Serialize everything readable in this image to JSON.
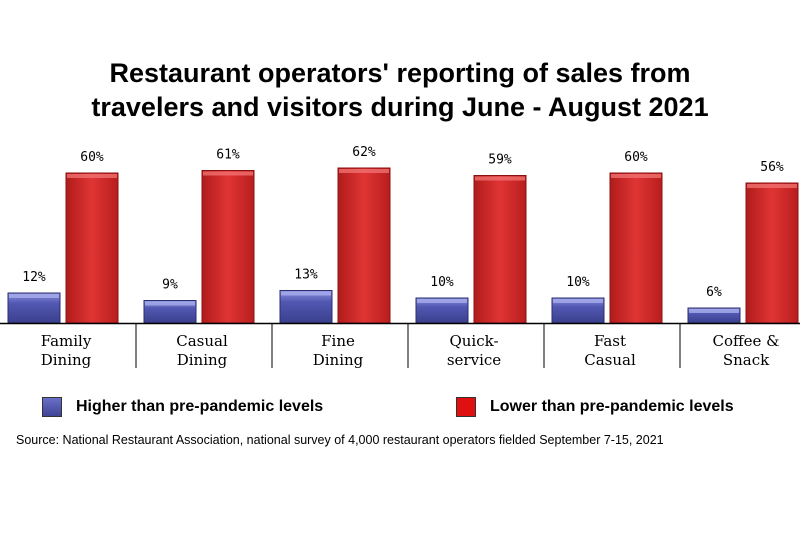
{
  "chart_data": {
    "type": "bar",
    "title_lines": [
      "Restaurant operators' reporting of sales from",
      "travelers and visitors during June - August 2021"
    ],
    "categories": [
      [
        "Family",
        "Dining"
      ],
      [
        "Casual",
        "Dining"
      ],
      [
        "Fine",
        "Dining"
      ],
      [
        "Quick-",
        "service"
      ],
      [
        "Fast",
        "Casual"
      ],
      [
        "Coffee &",
        "Snack"
      ]
    ],
    "series": [
      {
        "name": "Higher than pre-pandemic levels",
        "values": [
          12,
          9,
          13,
          10,
          10,
          6
        ],
        "color": "#4a4fa8"
      },
      {
        "name": "Lower than pre-pandemic levels",
        "values": [
          60,
          61,
          62,
          59,
          60,
          56
        ],
        "color": "#d42a2a"
      }
    ],
    "data_labels": [
      [
        "12%",
        "9%",
        "13%",
        "10%",
        "10%",
        "6%"
      ],
      [
        "60%",
        "61%",
        "62%",
        "59%",
        "60%",
        "56%"
      ]
    ],
    "ylim": [
      0,
      62
    ],
    "xlabel": "",
    "ylabel": "",
    "grid": false,
    "legend_position": "bottom",
    "source": "Source: National Restaurant Association, national survey of 4,000 restaurant operators fielded September 7-15, 2021"
  }
}
